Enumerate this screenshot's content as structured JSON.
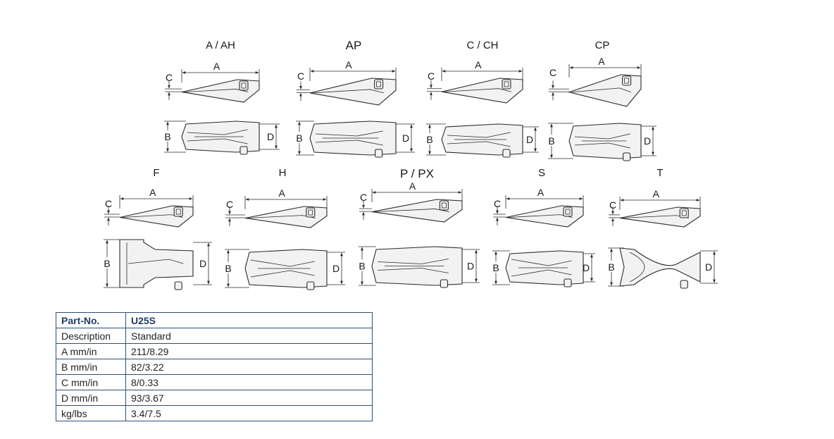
{
  "variants": [
    {
      "id": "a",
      "title": "A / AH"
    },
    {
      "id": "ap",
      "title": "AP"
    },
    {
      "id": "c",
      "title": "C / CH"
    },
    {
      "id": "cp",
      "title": "CP"
    },
    {
      "id": "f",
      "title": "F"
    },
    {
      "id": "h",
      "title": "H"
    },
    {
      "id": "p",
      "title": "P / PX"
    },
    {
      "id": "s",
      "title": "S"
    },
    {
      "id": "t",
      "title": "T"
    }
  ],
  "dimension_letters": {
    "a": "A",
    "b": "B",
    "c": "C",
    "d": "D"
  },
  "specs": {
    "header": {
      "label": "Part-No.",
      "value": "U25S"
    },
    "rows": [
      {
        "label": "Description",
        "value": "Standard"
      },
      {
        "label": "A mm/in",
        "value": "211/8.29"
      },
      {
        "label": "B mm/in",
        "value": "82/3.22"
      },
      {
        "label": "C mm/in",
        "value": "8/0.33"
      },
      {
        "label": "D mm/in",
        "value": "93/3.67"
      },
      {
        "label": "kg/lbs",
        "value": "3.4/7.5"
      }
    ]
  }
}
